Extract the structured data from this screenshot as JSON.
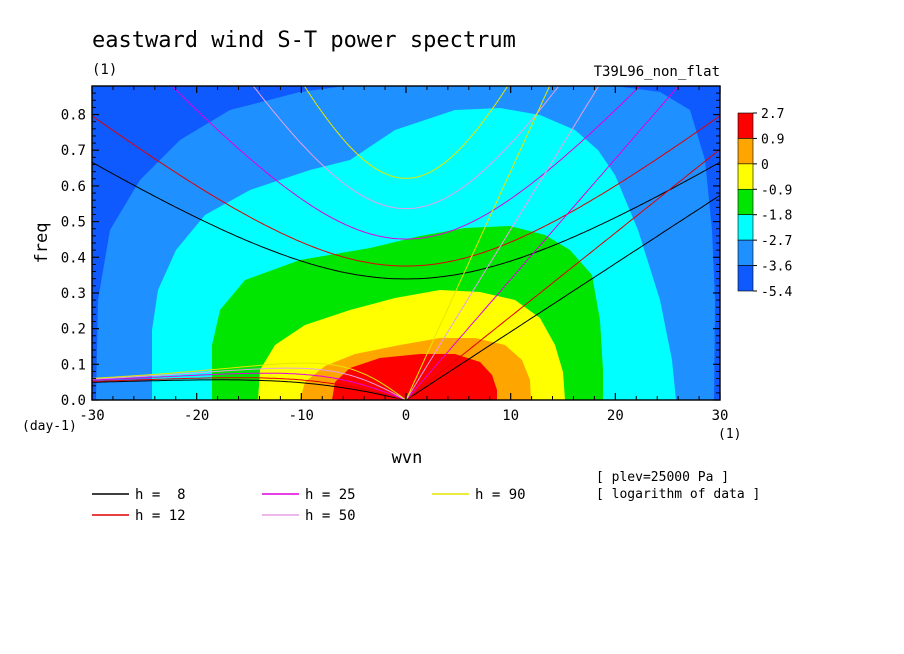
{
  "chart_data": {
    "type": "heatmap",
    "title": "eastward wind S-T power spectrum",
    "subtitle_left": "(1)",
    "subtitle_right": "T39L96_non_flat",
    "xlabel": "wvn",
    "ylabel": "freq",
    "x_unit": "(1)",
    "y_unit": "(day-1)",
    "xlim": [
      -30,
      30
    ],
    "ylim": [
      0,
      0.88
    ],
    "xticks": [
      "-30",
      "-20",
      "-10",
      "0",
      "10",
      "20",
      "30"
    ],
    "yticks": [
      "0.0",
      "0.1",
      "0.2",
      "0.3",
      "0.4",
      "0.5",
      "0.6",
      "0.7",
      "0.8"
    ],
    "colorbar": {
      "labels": [
        "2.7",
        "0.9",
        "0",
        "-0.9",
        "-1.8",
        "-2.7",
        "-3.6",
        "-5.4"
      ],
      "colors": [
        "#ff0000",
        "#ffa500",
        "#ffff00",
        "#00e600",
        "#00ffff",
        "#1f90ff",
        "#0f5aff"
      ]
    },
    "annotations": [
      "[ plev=25000 Pa ]",
      "[ logarithm of data ]"
    ],
    "dispersion_curves": [
      {
        "label": "h =  8",
        "h": 8,
        "color": "#000000"
      },
      {
        "label": "h = 12",
        "h": 12,
        "color": "#e00000"
      },
      {
        "label": "h = 25",
        "h": 25,
        "color": "#e000e0"
      },
      {
        "label": "h = 50",
        "h": 50,
        "color": "#e6a0e6"
      },
      {
        "label": "h = 90",
        "h": 90,
        "color": "#e6e600"
      }
    ]
  }
}
